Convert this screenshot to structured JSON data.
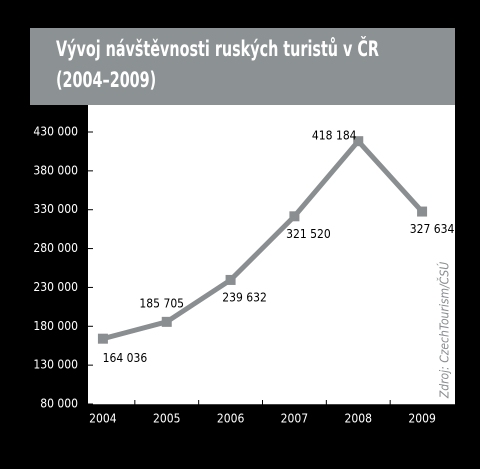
{
  "chart_data": {
    "type": "line",
    "title": "Vývoj návštěvnosti ruských turistů v ČR (2004–2009)",
    "annotation": "Zdroj: CzechTourism/ČSÚ",
    "categories": [
      "2004",
      "2005",
      "2006",
      "2007",
      "2008",
      "2009"
    ],
    "series": [
      {
        "color": "#8a8e90",
        "values": [
          164036,
          185705,
          239632,
          321520,
          418184,
          327634
        ],
        "value_labels": [
          "164 036",
          "185 705",
          "239 632",
          "321 520",
          "418 184",
          "327 634"
        ]
      }
    ],
    "ylim": [
      80000,
      430000
    ],
    "yticks": [
      {
        "value": 80000,
        "label": "80 000"
      },
      {
        "value": 130000,
        "label": "130 000"
      },
      {
        "value": 180000,
        "label": "180 000"
      },
      {
        "value": 230000,
        "label": "230 000"
      },
      {
        "value": 280000,
        "label": "280 000"
      },
      {
        "value": 330000,
        "label": "330 000"
      },
      {
        "value": 380000,
        "label": "380 000"
      },
      {
        "value": 430000,
        "label": "430 000"
      }
    ]
  }
}
